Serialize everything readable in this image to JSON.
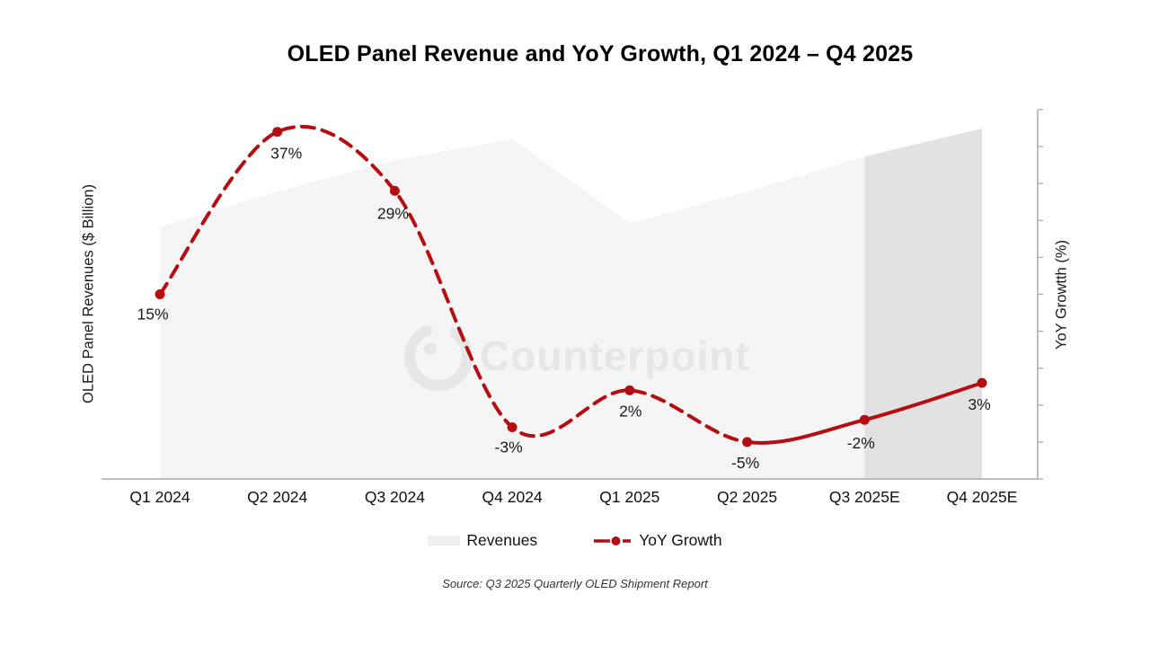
{
  "title": "OLED Panel Revenue and YoY Growth, Q1 2024 – Q4 2025",
  "axes": {
    "left_label": "OLED Panel Revenues ($ Billion)",
    "right_label": "YoY Growtth (%)",
    "left_tick_labels_visible": false,
    "right_tick_labels_visible": false
  },
  "legend": [
    {
      "label": "Revenues",
      "type": "area",
      "color": "#f0f0f0"
    },
    {
      "label": "YoY Growth",
      "type": "line",
      "color": "#b50d11"
    }
  ],
  "source": "Source: Q3 2025 Quarterly OLED Shipment Report",
  "watermark": {
    "text": "Counterpoint",
    "logo": "counterpoint-swirl-logo"
  },
  "colors": {
    "accent_red": "#b50d11",
    "area_fill": "#f5f5f5",
    "area_forecast_fill": "#e2e2e2",
    "axis_line": "#ababab",
    "watermark": "#e6e6e6"
  },
  "chart_data": {
    "type": "line",
    "subtype": "combo-area-line-dual-axis",
    "categories": [
      "Q1 2024",
      "Q2 2024",
      "Q3 2024",
      "Q4 2024",
      "Q1 2025",
      "Q2 2025",
      "Q3 2025E",
      "Q4 2025E"
    ],
    "series": [
      {
        "name": "Revenues",
        "type": "area",
        "axis": "left",
        "values_estimated_index": [
          72,
          82,
          91,
          97,
          73,
          82,
          92,
          100
        ],
        "note": "Left axis has no numeric tick labels; values are relative area heights scaled so Q4 2025E = 100.",
        "forecast_start_index": 6
      },
      {
        "name": "YoY Growth",
        "type": "line",
        "axis": "right",
        "values_pct": [
          15,
          37,
          29,
          -3,
          2,
          -5,
          -2,
          3
        ],
        "labels": [
          "15%",
          "37%",
          "29%",
          "-3%",
          "2%",
          "-5%",
          "-2%",
          "3%"
        ],
        "dashed_until_index": 5,
        "solid_start_index": 5
      }
    ],
    "right_axis": {
      "min": -10,
      "max": 40,
      "tick_step": 5,
      "tick_labels_visible": false
    },
    "legend_position": "bottom",
    "grid": false,
    "title": "OLED Panel Revenue and YoY Growth, Q1 2024 – Q4 2025"
  }
}
